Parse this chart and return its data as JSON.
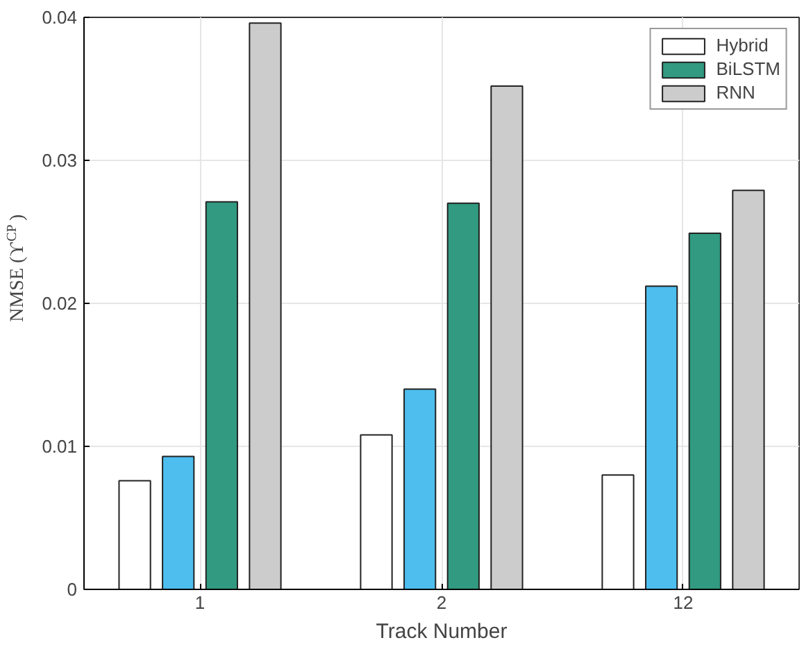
{
  "chart_data": {
    "type": "bar",
    "xlabel": "Track Number",
    "ylabel": "NMSE (ϒ$^{CP}$)",
    "categories": [
      "1",
      "2",
      "12"
    ],
    "series": [
      {
        "name": "Hybrid",
        "color": "#ffffff",
        "values": [
          0.0076,
          0.0108,
          0.008
        ]
      },
      {
        "color": "#4dbeee",
        "values": [
          0.0093,
          0.014,
          0.0212
        ]
      },
      {
        "name": "BiLSTM",
        "color": "#319a80",
        "values": [
          0.0271,
          0.027,
          0.0249
        ]
      },
      {
        "name": "RNN",
        "color": "#cccccc",
        "values": [
          0.0396,
          0.0352,
          0.0279
        ]
      }
    ],
    "ylim": [
      0,
      0.04
    ],
    "yticks": [
      0,
      0.01,
      0.02,
      0.03,
      0.04
    ],
    "grid": true,
    "legend": "top right"
  }
}
